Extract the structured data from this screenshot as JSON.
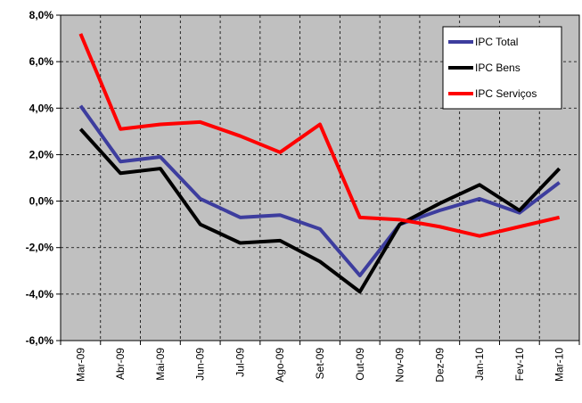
{
  "chart_data": {
    "type": "line",
    "categories": [
      "Mar-09",
      "Abr-09",
      "Mai-09",
      "Jun-09",
      "Jul-09",
      "Ago-09",
      "Set-09",
      "Out-09",
      "Nov-09",
      "Dez-09",
      "Jan-10",
      "Fev-10",
      "Mar-10"
    ],
    "series": [
      {
        "name": "IPC Total",
        "color": "#3d3d9e",
        "values": [
          4.1,
          1.7,
          1.9,
          0.1,
          -0.7,
          -0.6,
          -1.2,
          -3.2,
          -1.0,
          -0.4,
          0.1,
          -0.5,
          0.8
        ]
      },
      {
        "name": "IPC Bens",
        "color": "#000000",
        "values": [
          3.1,
          1.2,
          1.4,
          -1.0,
          -1.8,
          -1.7,
          -2.6,
          -3.9,
          -1.0,
          -0.1,
          0.7,
          -0.4,
          1.4
        ]
      },
      {
        "name": "IPC Serviços",
        "color": "#ff0000",
        "values": [
          7.2,
          3.1,
          3.3,
          3.4,
          2.8,
          2.1,
          3.3,
          -0.7,
          -0.8,
          -1.1,
          -1.5,
          -1.1,
          -0.7
        ]
      }
    ],
    "ylim": [
      -6,
      8
    ],
    "yticks": [
      {
        "value": -6,
        "label": "-6,0%"
      },
      {
        "value": -4,
        "label": "-4,0%"
      },
      {
        "value": -2,
        "label": "-2,0%"
      },
      {
        "value": 0,
        "label": "0,0%"
      },
      {
        "value": 2,
        "label": "2,0%"
      },
      {
        "value": 4,
        "label": "4,0%"
      },
      {
        "value": 6,
        "label": "6,0%"
      },
      {
        "value": 8,
        "label": "8,0%"
      }
    ],
    "grid": true,
    "legend": "upper right"
  }
}
